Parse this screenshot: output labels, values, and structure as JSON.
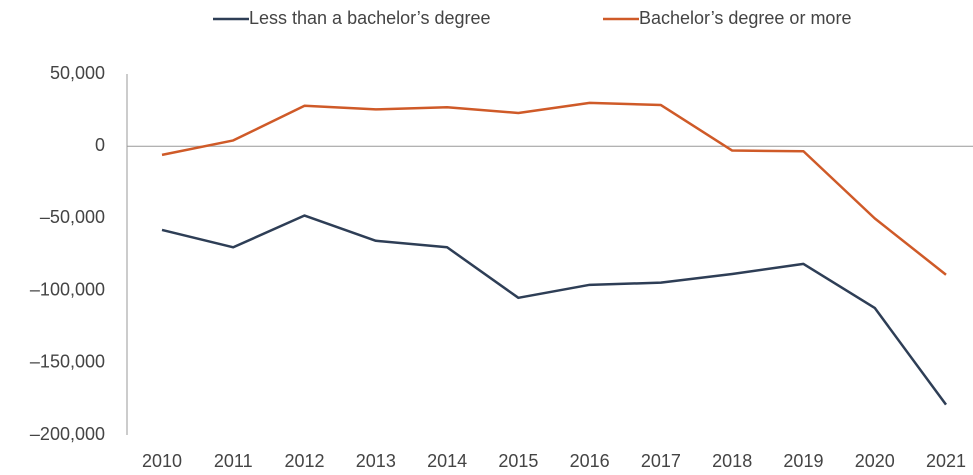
{
  "chart_data": {
    "type": "line",
    "categories": [
      "2010",
      "2011",
      "2012",
      "2013",
      "2014",
      "2015",
      "2016",
      "2017",
      "2018",
      "2019",
      "2020",
      "2021"
    ],
    "series": [
      {
        "name": "Less than a bachelor’s degree",
        "color": "#2e3e56",
        "values": [
          -58000,
          -70000,
          -48000,
          -65500,
          -70000,
          -105000,
          -96000,
          -94500,
          -88500,
          -81500,
          -112000,
          -179000
        ]
      },
      {
        "name": "Bachelor’s degree or more",
        "color": "#cf5a28",
        "values": [
          -6000,
          4000,
          28000,
          25500,
          27000,
          23000,
          30000,
          28500,
          -3000,
          -3500,
          -50000,
          -89000
        ]
      }
    ],
    "ylim": [
      -200000,
      50000
    ],
    "yticks": [
      {
        "value": -200000,
        "label": "–200,000"
      },
      {
        "value": -150000,
        "label": "–150,000"
      },
      {
        "value": -100000,
        "label": "–100,000"
      },
      {
        "value": -50000,
        "label": "–50,000"
      },
      0,
      {
        "value": 50000,
        "label": "50,000"
      }
    ],
    "legend": "top"
  }
}
